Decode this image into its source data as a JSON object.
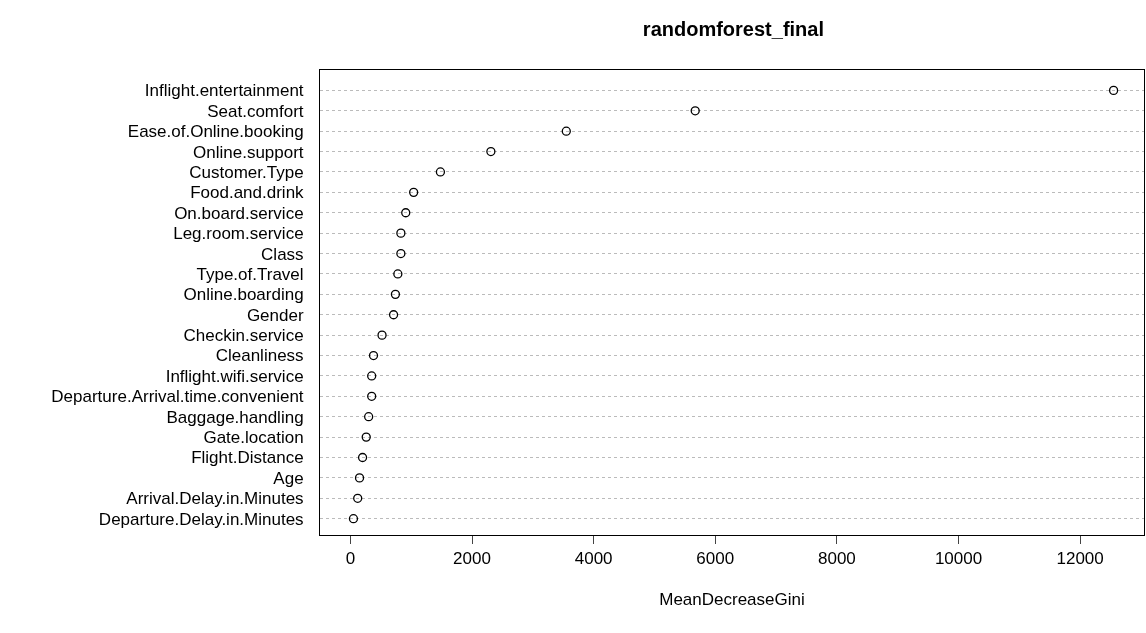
{
  "chart_data": {
    "type": "scatter",
    "title": "randomforest_final",
    "xlabel": "MeanDecreaseGini",
    "categories": [
      "Inflight.entertainment",
      "Seat.comfort",
      "Ease.of.Online.booking",
      "Online.support",
      "Customer.Type",
      "Food.and.drink",
      "On.board.service",
      "Leg.room.service",
      "Class",
      "Type.of.Travel",
      "Online.boarding",
      "Gender",
      "Checkin.service",
      "Cleanliness",
      "Inflight.wifi.service",
      "Departure.Arrival.time.convenient",
      "Baggage.handling",
      "Gate.location",
      "Flight.Distance",
      "Age",
      "Arrival.Delay.in.Minutes",
      "Departure.Delay.in.Minutes"
    ],
    "orientation": "horizontal",
    "values": [
      12550,
      5670,
      3550,
      2310,
      1480,
      1040,
      910,
      830,
      830,
      780,
      740,
      710,
      520,
      380,
      350,
      350,
      300,
      260,
      200,
      150,
      120,
      50
    ],
    "color": "#000000",
    "xlim": [
      -500,
      13050
    ],
    "xticks": [
      0,
      2000,
      4000,
      6000,
      8000,
      10000,
      12000
    ],
    "grid": "y",
    "marker": "circle",
    "legend": false
  }
}
